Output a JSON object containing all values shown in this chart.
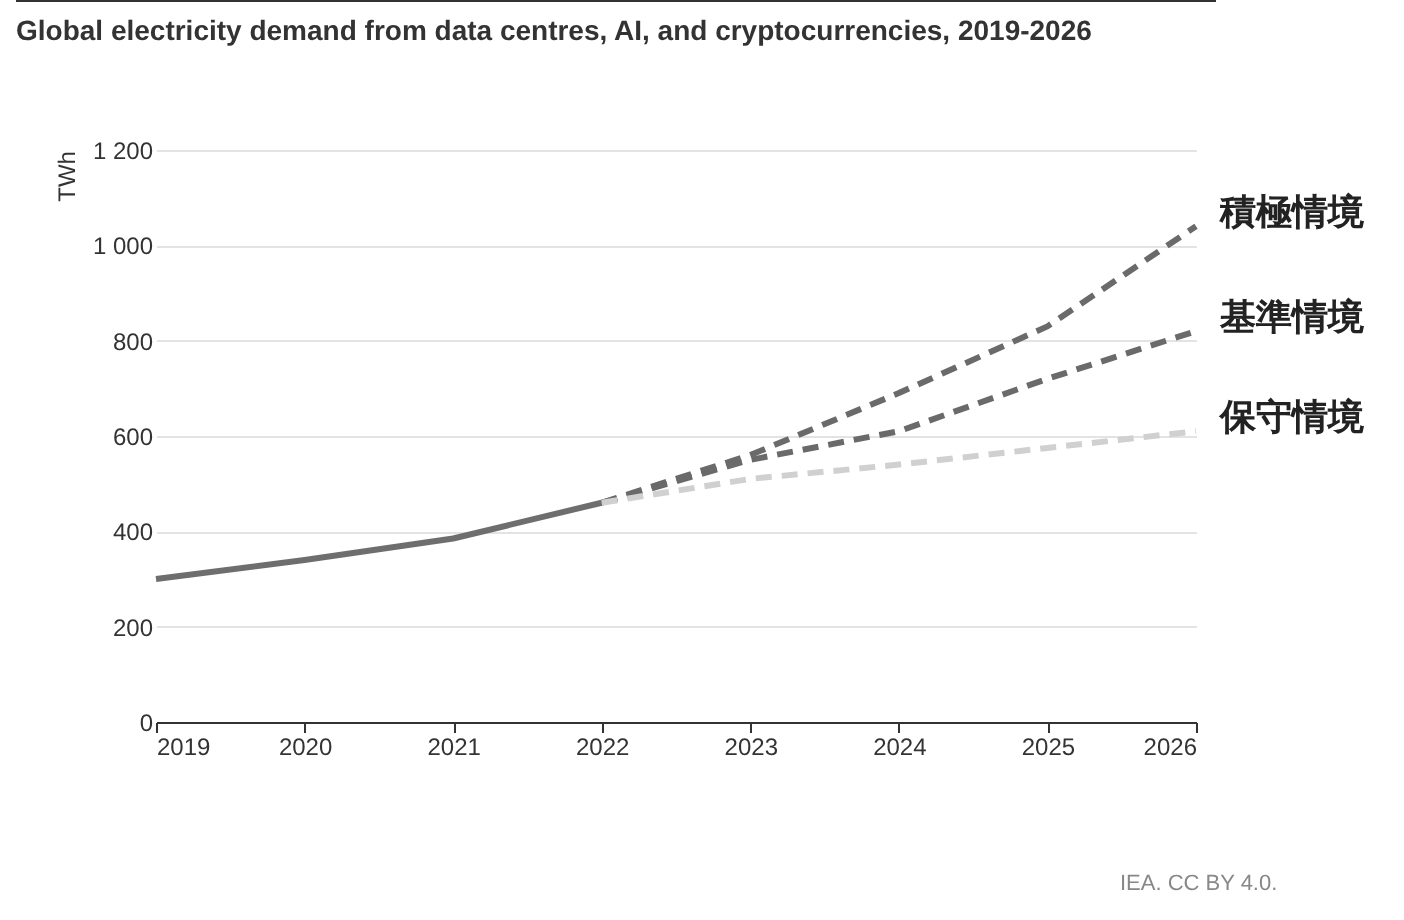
{
  "chart_data": {
    "type": "line",
    "title": "Global electricity demand from data centres, AI, and cryptocurrencies, 2019-2026",
    "ylabel": "TWh",
    "annotations": [
      "IEA. CC BY 4.0."
    ],
    "xlim": [
      2019,
      2026
    ],
    "xticks": [
      2019,
      2020,
      2021,
      2022,
      2023,
      2024,
      2025,
      2026
    ],
    "ylim": [
      0,
      1200
    ],
    "yticks": [
      0,
      200,
      400,
      600,
      800,
      {
        "value": 1000,
        "label": "1 000"
      },
      {
        "value": 1200,
        "label": "1 200"
      }
    ],
    "grid": "y",
    "marker": "none",
    "series": [
      {
        "color": "#6e6e6e",
        "line_style": "solid",
        "x": [
          2019,
          2020,
          2021,
          2022
        ],
        "values": [
          300,
          340,
          385,
          460
        ]
      },
      {
        "name": "積極情境",
        "color": "#6a6a6a",
        "line_style": "dashed",
        "x": [
          2022,
          2023,
          2024,
          2025,
          2026
        ],
        "values": [
          460,
          560,
          690,
          830,
          1040
        ]
      },
      {
        "name": "基準情境",
        "color": "#6a6a6a",
        "line_style": "dashed",
        "x": [
          2022,
          2023,
          2024,
          2025,
          2026
        ],
        "values": [
          460,
          550,
          610,
          720,
          820
        ]
      },
      {
        "name": "保守情境",
        "color": "#d0d0d0",
        "line_style": "dashed",
        "x": [
          2022,
          2023,
          2024,
          2025,
          2026
        ],
        "values": [
          460,
          510,
          540,
          575,
          610
        ]
      }
    ]
  }
}
